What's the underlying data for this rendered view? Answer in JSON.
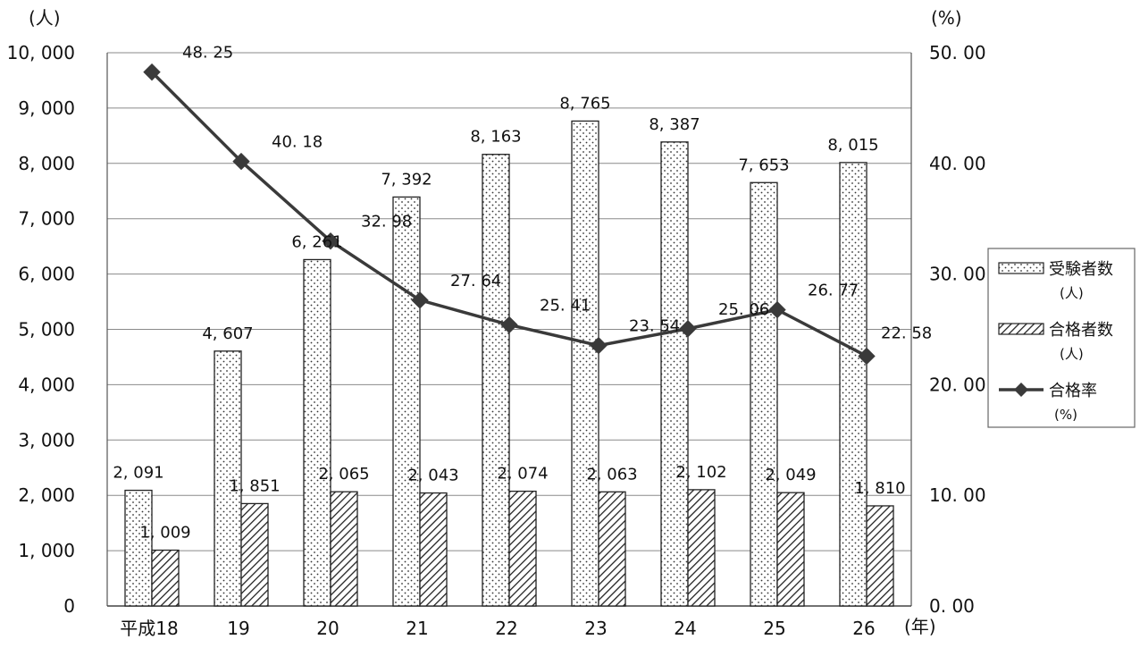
{
  "chart_data": {
    "type": "bar",
    "categories": [
      "平成18",
      "19",
      "20",
      "21",
      "22",
      "23",
      "24",
      "25",
      "26"
    ],
    "x_unit": "(年)",
    "y_left": {
      "unit": "(人)",
      "ylim": [
        0,
        10000
      ],
      "ticks": [
        "0",
        "1, 000",
        "2, 000",
        "3, 000",
        "4, 000",
        "5, 000",
        "6, 000",
        "7, 000",
        "8, 000",
        "9, 000",
        "10, 000"
      ]
    },
    "y_right": {
      "unit": "(%)",
      "ylim": [
        0,
        50
      ],
      "ticks": [
        "0. 00",
        "10. 00",
        "20. 00",
        "30. 00",
        "40. 00",
        "50. 00"
      ]
    },
    "grid": true,
    "legend_position": "right",
    "series": [
      {
        "name": "受験者数",
        "name_sub": "(人)",
        "kind": "bar",
        "pattern": "dots",
        "values": [
          2091,
          4607,
          6261,
          7392,
          8163,
          8765,
          8387,
          7653,
          8015
        ],
        "labels": [
          "2, 091",
          "4, 607",
          "6, 261",
          "7, 392",
          "8, 163",
          "8, 765",
          "8, 387",
          "7, 653",
          "8, 015"
        ]
      },
      {
        "name": "合格者数",
        "name_sub": "(人)",
        "kind": "bar",
        "pattern": "hatch",
        "values": [
          1009,
          1851,
          2065,
          2043,
          2074,
          2063,
          2102,
          2049,
          1810
        ],
        "labels": [
          "1, 009",
          "1, 851",
          "2, 065",
          "2, 043",
          "2, 074",
          "2, 063",
          "2, 102",
          "2, 049",
          "1, 810"
        ]
      },
      {
        "name": "合格率",
        "name_sub": "(%)",
        "kind": "line",
        "axis": "right",
        "marker": "diamond",
        "values": [
          48.25,
          40.18,
          32.98,
          27.64,
          25.41,
          23.54,
          25.06,
          26.77,
          22.58
        ],
        "labels": [
          "48. 25",
          "40. 18",
          "32. 98",
          "27. 64",
          "25. 41",
          "23. 54",
          "25. 06",
          "26. 77",
          "22. 58"
        ]
      }
    ]
  }
}
